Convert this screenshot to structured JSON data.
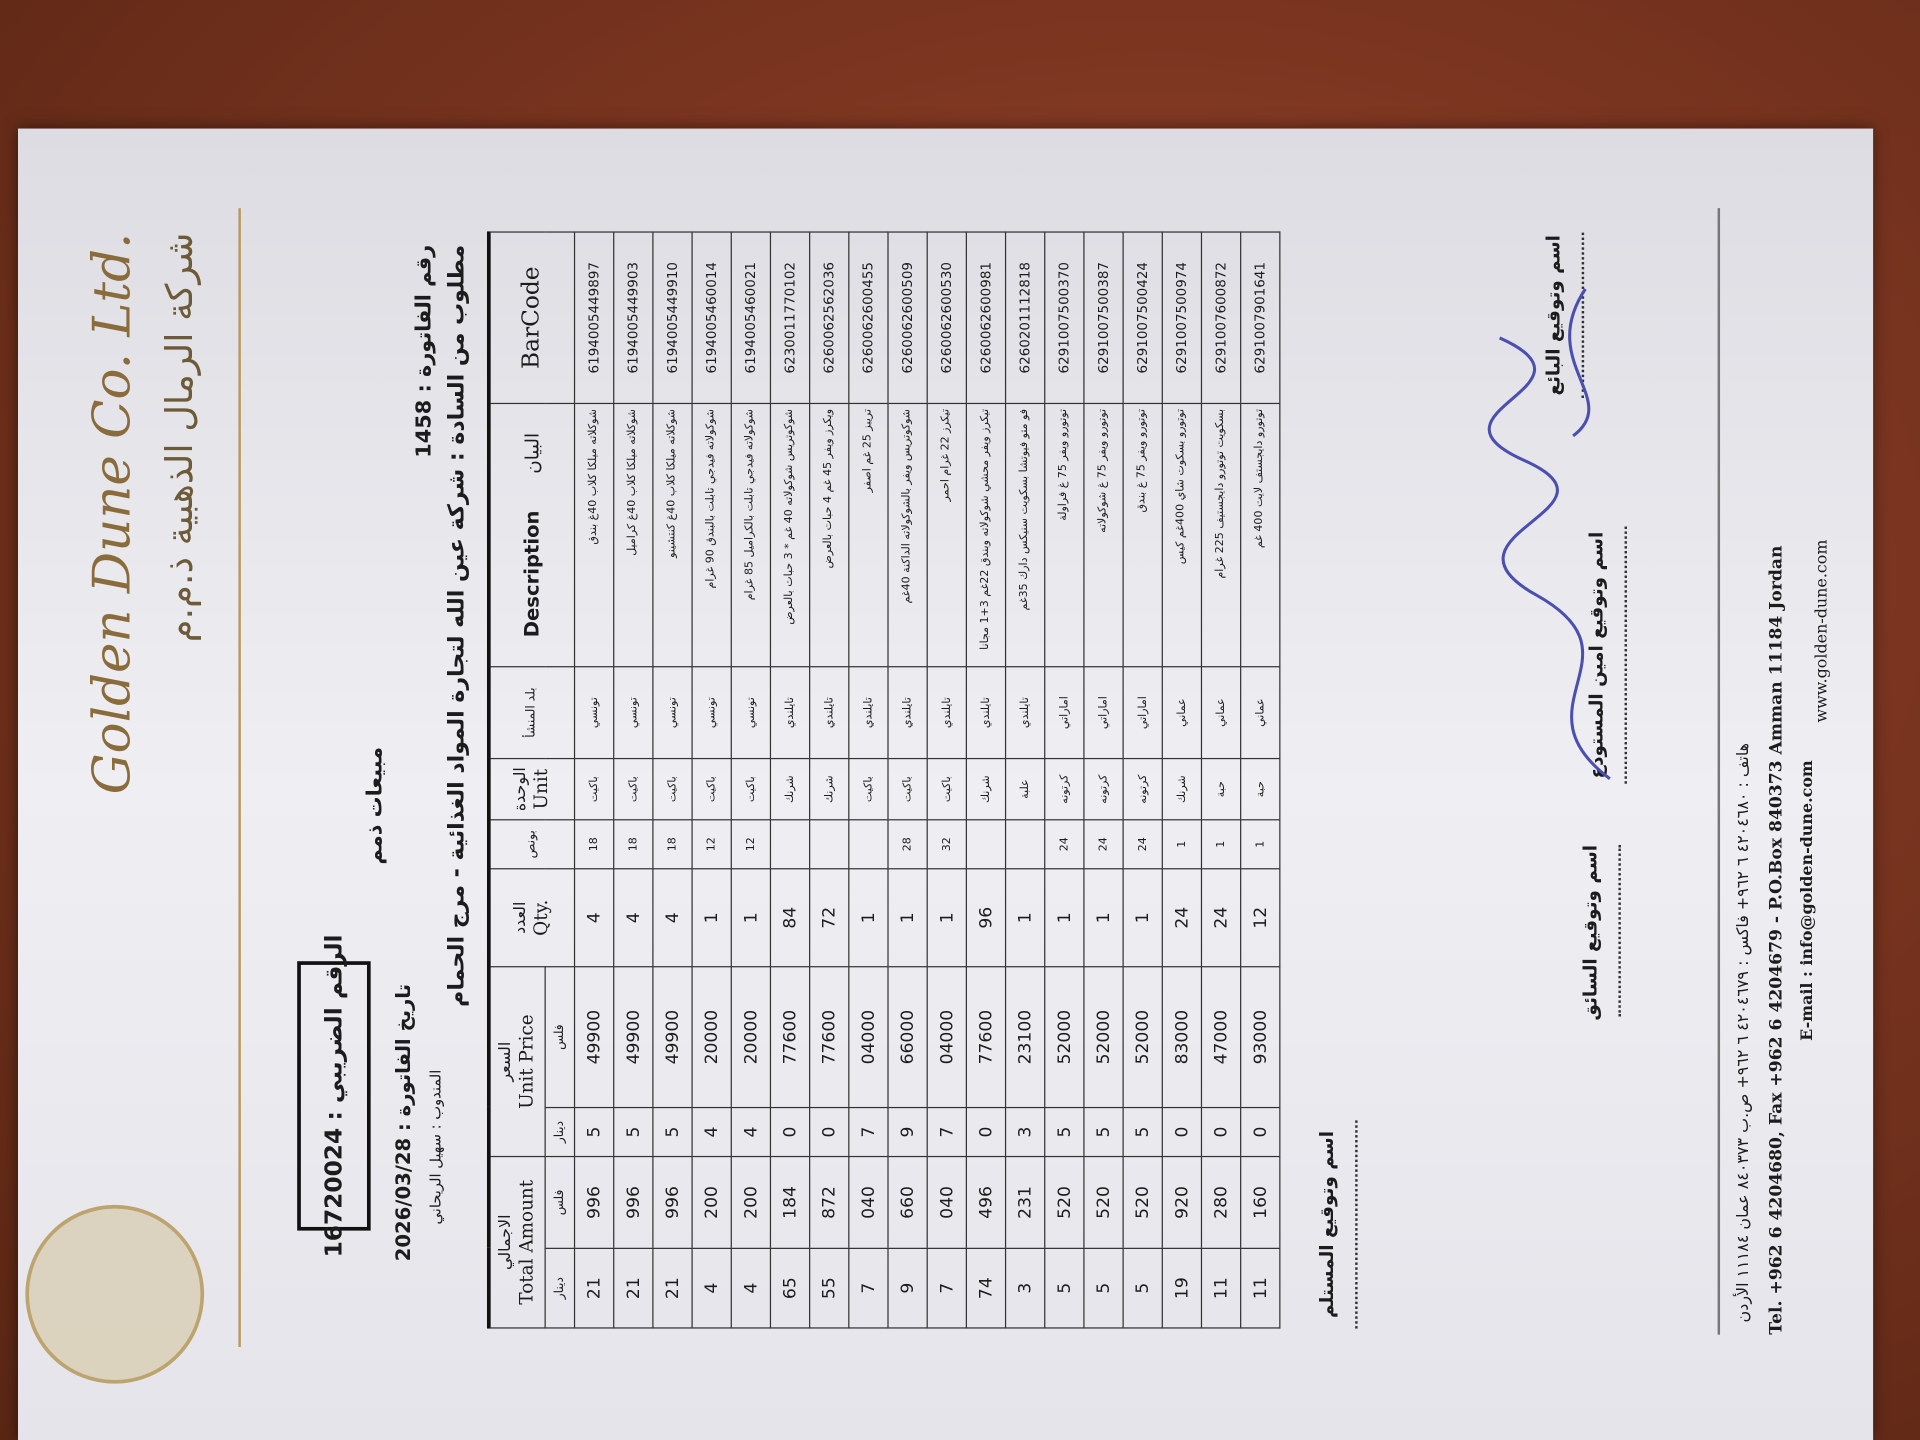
{
  "header": {
    "company_en": "Golden Dune Co. Ltd.",
    "company_ar": "شركة الرمال الذهبية ذ.م.م"
  },
  "tax_number": {
    "label": "الرقم الضريبي :",
    "value": "16720024"
  },
  "sale_type": "مبيعات ذمم",
  "invoice": {
    "number_label": "رقم الفاتورة :",
    "number": "1458",
    "date_label": "تاريخ الفاتورة :",
    "date": "2026/03/28",
    "salesman_label": "المندوب :",
    "salesman": "سهيل الريحاني",
    "customer_label": "مطلوب من السادة :",
    "customer": "شركة عين الله لتجارة المواد الغذائية - مرج الحمام"
  },
  "table": {
    "groups": [
      {
        "ar": "الاجمالي",
        "en": "Total Amount",
        "sub": [
          "دينار",
          "فلس"
        ]
      },
      {
        "ar": "السعر",
        "en": "Unit Price",
        "sub": [
          "دينار",
          "فلس"
        ]
      }
    ],
    "columns": [
      {
        "ar": "العدد",
        "en": "Qty."
      },
      {
        "ar": "بونص"
      },
      {
        "ar": "الوحدة",
        "en": "Unit"
      },
      {
        "ar": "بلد المنشأ"
      },
      {
        "ar": "البيان",
        "en": "Description"
      },
      {
        "en": "BarCode"
      }
    ],
    "rows": [
      [
        "21",
        "996",
        "5",
        "49900",
        "4",
        "18",
        "باكيت",
        "تونسي",
        "شوكلاته ميلكا كلاب 40غ بندق",
        "6194005449897"
      ],
      [
        "21",
        "996",
        "5",
        "49900",
        "4",
        "18",
        "باكيت",
        "تونسي",
        "شوكلاته ميلكا كلاب 40غ كراميل",
        "6194005449903"
      ],
      [
        "21",
        "996",
        "5",
        "49900",
        "4",
        "18",
        "باكيت",
        "تونسي",
        "شوكلاته ميلكا كلاب 40غ كنتشينو",
        "6194005449910"
      ],
      [
        "4",
        "200",
        "4",
        "20000",
        "1",
        "12",
        "باكيت",
        "تونسي",
        "شوكولاته فيدجي تابلت بالبندق 90 غرام",
        "6194005460014"
      ],
      [
        "4",
        "200",
        "4",
        "20000",
        "1",
        "12",
        "باكيت",
        "تونسي",
        "شوكولاته فيدجي تابلت بالكراميل 85 غرام",
        "6194005460021"
      ],
      [
        "65",
        "184",
        "0",
        "77600",
        "84",
        null,
        "شرنك",
        "تايلندي",
        "شوكوتريس شوكولاته 40 غم * 3 حبات بالعرض",
        "6230011770102"
      ],
      [
        "55",
        "872",
        "0",
        "77600",
        "72",
        null,
        "شرنك",
        "تايلندي",
        "ويكرز ويفر 45 غم 4 حبات بالعرض",
        "6260062562036"
      ],
      [
        "7",
        "040",
        "7",
        "04000",
        "1",
        null,
        "باكيت",
        "تايلندي",
        "تريبز 25 غم اصفر",
        "6260062600455"
      ],
      [
        "9",
        "660",
        "9",
        "66000",
        "1",
        "28",
        "باكيت",
        "تايلندي",
        "شوكوتريس ويفر بالشوكولاته الداكنة 40غم",
        "6260062600509"
      ],
      [
        "7",
        "040",
        "7",
        "04000",
        "1",
        "32",
        "باكيت",
        "تايلندي",
        "تيكرز 22 غرام احمر",
        "6260062600530"
      ],
      [
        "74",
        "496",
        "0",
        "77600",
        "96",
        null,
        "شرنك",
        "تايلندي",
        "تيكرز ويفر محشي شوكولاته وبندق 22غم 3+1 مجانا",
        "6260062600981"
      ],
      [
        "3",
        "231",
        "3",
        "23100",
        "1",
        null,
        "علبة",
        "تايلندي",
        "فو متو فيوتشا بسكويت سنيكس دارك 35غم",
        "6260201112818"
      ],
      [
        "5",
        "520",
        "5",
        "52000",
        "1",
        "24",
        "كرتونه",
        "اماراتي",
        "توتورو ويفر 75 غ فراولة",
        "6291007500370"
      ],
      [
        "5",
        "520",
        "5",
        "52000",
        "1",
        "24",
        "كرتونه",
        "اماراتي",
        "توتورو ويفر 75 غ شوكولاته",
        "6291007500387"
      ],
      [
        "5",
        "520",
        "5",
        "52000",
        "1",
        "24",
        "كرتونه",
        "اماراتي",
        "توتورو ويفر 75 غ بندق",
        "6291007500424"
      ],
      [
        "19",
        "920",
        "0",
        "83000",
        "24",
        "1",
        "شرنك",
        "عماني",
        "توتورو بسكوت شاي 400غم كيس",
        "6291007500974"
      ],
      [
        "11",
        "280",
        "0",
        "47000",
        "24",
        "1",
        "حبة",
        "عماني",
        "بسكويت توتورو دايجستيف 225 غرام",
        "6291007600872"
      ],
      [
        "11",
        "160",
        "0",
        "93000",
        "12",
        "1",
        "حبة",
        "عماني",
        "توتورو دايجستف لايت 400 غم",
        "6291007901641"
      ]
    ]
  },
  "signatures": [
    "اسم وتوقيع البائع",
    "اسم وتوقيع امين المستودع",
    "اسم وتوقيع السائق",
    "اسم وتوقيع المستلم"
  ],
  "footer": {
    "ar": "هاتف : ٤٢٠٤٦٨٠ ٦ ٩٦٢+ فاكس : ٤٢٠٤٦٧٩ ٦ ٩٦٢+ ص.ب ٨٤٠٣٧٣ عمان ١١١٨٤ الأردن",
    "en": "Tel. +962 6 4204680, Fax +962 6 4204679 - P.O.Box 840373 Amman 11184 Jordan",
    "email": "E-mail : info@golden-dune.com",
    "web": "www.golden-dune.com"
  }
}
